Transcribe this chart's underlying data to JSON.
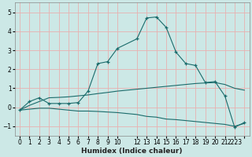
{
  "title": "",
  "xlabel": "Humidex (Indice chaleur)",
  "bg_color": "#cce8e6",
  "grid_color": "#e8b0b0",
  "line_color": "#1a6b6b",
  "xlim": [
    -0.5,
    23.5
  ],
  "ylim": [
    -1.5,
    5.5
  ],
  "yticks": [
    -1,
    0,
    1,
    2,
    3,
    4,
    5
  ],
  "xtick_labels": [
    "0",
    "1",
    "2",
    "3",
    "4",
    "5",
    "6",
    "7",
    "8",
    "9",
    "10",
    "12",
    "13",
    "14",
    "15",
    "16",
    "17",
    "18",
    "19",
    "20",
    "21",
    "2223"
  ],
  "xtick_pos": [
    0,
    1,
    2,
    3,
    4,
    5,
    6,
    7,
    8,
    9,
    10,
    12,
    13,
    14,
    15,
    16,
    17,
    18,
    19,
    20,
    21,
    22
  ],
  "line1_x": [
    0,
    1,
    2,
    3,
    4,
    5,
    6,
    7,
    8,
    9,
    10,
    12,
    13,
    14,
    15,
    16,
    17,
    18,
    19,
    20,
    21,
    22,
    23
  ],
  "line1_y": [
    -0.15,
    0.3,
    0.5,
    0.2,
    0.2,
    0.2,
    0.25,
    0.85,
    2.3,
    2.4,
    3.1,
    3.6,
    4.7,
    4.75,
    4.2,
    2.9,
    2.3,
    2.2,
    1.3,
    1.35,
    0.6,
    -1.05,
    -0.8
  ],
  "line2_x": [
    0,
    1,
    2,
    3,
    4,
    5,
    6,
    7,
    8,
    9,
    10,
    12,
    13,
    14,
    15,
    16,
    17,
    18,
    19,
    20,
    21,
    22,
    23
  ],
  "line2_y": [
    -0.15,
    0.1,
    0.3,
    0.5,
    0.52,
    0.55,
    0.6,
    0.65,
    0.72,
    0.78,
    0.85,
    0.95,
    1.0,
    1.05,
    1.1,
    1.15,
    1.2,
    1.25,
    1.28,
    1.3,
    1.2,
    1.0,
    0.9
  ],
  "line3_x": [
    0,
    1,
    2,
    3,
    4,
    5,
    6,
    7,
    8,
    9,
    10,
    12,
    13,
    14,
    15,
    16,
    17,
    18,
    19,
    20,
    21,
    22,
    23
  ],
  "line3_y": [
    -0.15,
    -0.1,
    -0.05,
    -0.05,
    -0.1,
    -0.15,
    -0.2,
    -0.2,
    -0.22,
    -0.25,
    -0.28,
    -0.38,
    -0.48,
    -0.52,
    -0.62,
    -0.65,
    -0.7,
    -0.75,
    -0.8,
    -0.85,
    -0.9,
    -1.0,
    -0.85
  ]
}
